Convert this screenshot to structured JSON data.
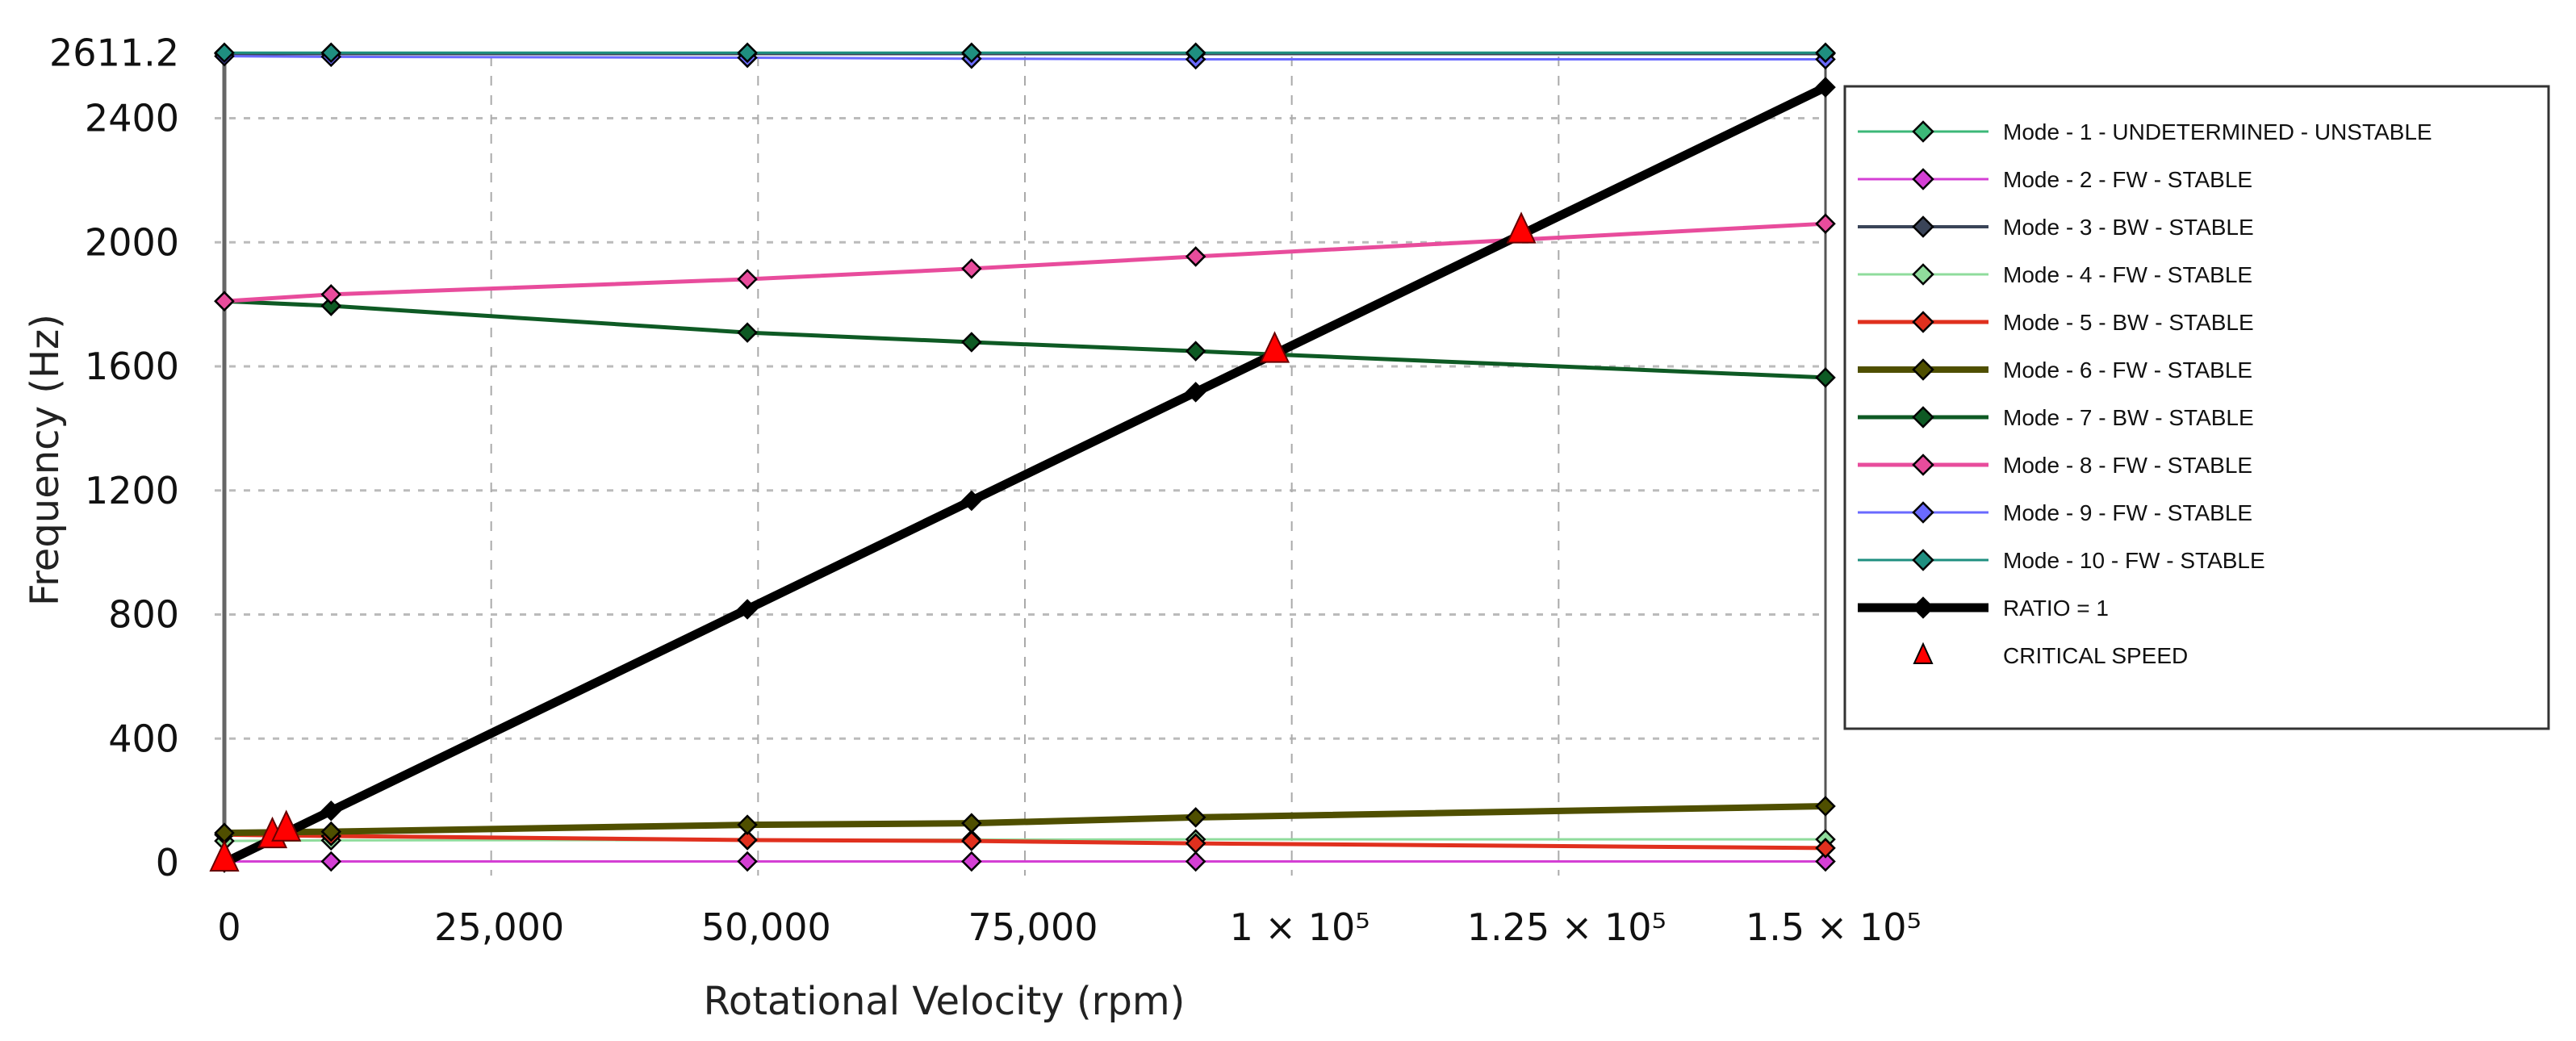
{
  "chart_data": {
    "type": "line",
    "title": "",
    "xlabel": "Rotational Velocity (rpm)",
    "ylabel": "Frequency (Hz)",
    "xlim": [
      0,
      150000
    ],
    "ylim": [
      0,
      2611.2
    ],
    "grid": true,
    "legend_position": "right",
    "x_ticks": [
      {
        "value": 0,
        "label": "0"
      },
      {
        "value": 25000,
        "label": "25,000"
      },
      {
        "value": 50000,
        "label": "50,000"
      },
      {
        "value": 75000,
        "label": "75,000"
      },
      {
        "value": 100000,
        "label": "1 × 10⁵"
      },
      {
        "value": 125000,
        "label": "1.25 × 10⁵"
      },
      {
        "value": 150000,
        "label": "1.5 × 10⁵"
      }
    ],
    "y_ticks": [
      {
        "value": 0,
        "label": "0"
      },
      {
        "value": 400,
        "label": "400"
      },
      {
        "value": 800,
        "label": "800"
      },
      {
        "value": 1200,
        "label": "1200"
      },
      {
        "value": 1600,
        "label": "1600"
      },
      {
        "value": 2000,
        "label": "2000"
      },
      {
        "value": 2400,
        "label": "2400"
      },
      {
        "value": 2611.2,
        "label": "2611.2"
      }
    ],
    "x": [
      0,
      10000,
      49000,
      70000,
      91000,
      150000
    ],
    "series": [
      {
        "name": "Mode - 1  - UNDETERMINED  - UNSTABLE",
        "color": "#3cb878",
        "width": 3,
        "values": [
          2611,
          2611,
          2611,
          2611,
          2611,
          2611
        ]
      },
      {
        "name": "Mode - 2  - FW  - STABLE",
        "color": "#d43fd4",
        "width": 3,
        "values": [
          4,
          4,
          4,
          4,
          4,
          4
        ]
      },
      {
        "name": "Mode - 3  - BW  - STABLE",
        "color": "#3a4458",
        "width": 4,
        "values": [
          2608,
          2608,
          2608,
          2608,
          2608,
          2608
        ]
      },
      {
        "name": "Mode - 4  - FW  - STABLE",
        "color": "#8fdc9c",
        "width": 3,
        "values": [
          70,
          72,
          73,
          74,
          75,
          75
        ]
      },
      {
        "name": "Mode - 5  - BW  - STABLE",
        "color": "#e0301e",
        "width": 5,
        "values": [
          90,
          86,
          73,
          70,
          62,
          47
        ]
      },
      {
        "name": "Mode - 6  - FW  - STABLE",
        "color": "#4f4f00",
        "width": 8,
        "values": [
          96,
          100,
          122,
          127,
          146,
          182
        ]
      },
      {
        "name": "Mode - 7  - BW  - STABLE",
        "color": "#0e5a24",
        "width": 5,
        "values": [
          1810,
          1795,
          1709,
          1678,
          1649,
          1564
        ]
      },
      {
        "name": "Mode - 8  - FW  - STABLE",
        "color": "#e84c9c",
        "width": 5,
        "values": [
          1810,
          1832,
          1881,
          1915,
          1954,
          2060
        ]
      },
      {
        "name": "Mode - 9  - FW  - STABLE",
        "color": "#6a6aff",
        "width": 3,
        "values": [
          2600,
          2598,
          2595,
          2592,
          2590,
          2590
        ]
      },
      {
        "name": "Mode - 10  - FW  - STABLE",
        "color": "#1f8f80",
        "width": 3,
        "values": [
          2611,
          2611,
          2611,
          2611,
          2611,
          2611
        ]
      },
      {
        "name": "RATIO = 1",
        "color": "#000000",
        "width": 11,
        "values": [
          0,
          167,
          817,
          1167,
          1517,
          2500
        ]
      }
    ],
    "critical_speeds": {
      "name": "CRITICAL SPEED",
      "color": "#ff0000",
      "points": [
        {
          "x": 0,
          "y": 0
        },
        {
          "x": 4500,
          "y": 75
        },
        {
          "x": 5800,
          "y": 97
        },
        {
          "x": 98400,
          "y": 1640
        },
        {
          "x": 121500,
          "y": 2025
        }
      ]
    }
  }
}
